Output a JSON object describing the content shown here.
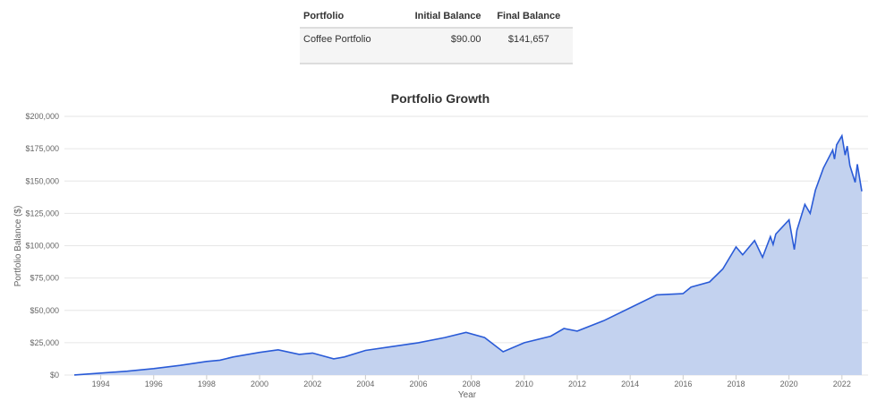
{
  "table": {
    "headers": [
      "Portfolio",
      "Initial Balance",
      "Final Balance"
    ],
    "rows": [
      {
        "portfolio": "Coffee Portfolio",
        "initial": "$90.00",
        "final": "$141,657"
      }
    ]
  },
  "chart_data": {
    "type": "area",
    "title": "Portfolio Growth",
    "xlabel": "Year",
    "ylabel": "Portfolio Balance ($)",
    "xlim": [
      1993,
      2022.75
    ],
    "ylim": [
      0,
      200000
    ],
    "grid": true,
    "color": "#2a5bd7",
    "fill": "#c3d2ef",
    "x_ticks": [
      "1994",
      "1996",
      "1998",
      "2000",
      "2002",
      "2004",
      "2006",
      "2008",
      "2010",
      "2012",
      "2014",
      "2016",
      "2018",
      "2020",
      "2022"
    ],
    "y_ticks": [
      "$0",
      "$25,000",
      "$50,000",
      "$75,000",
      "$100,000",
      "$125,000",
      "$150,000",
      "$175,000",
      "$200,000"
    ],
    "series": [
      {
        "points": [
          [
            1993,
            90
          ],
          [
            1994,
            1500
          ],
          [
            1995,
            3000
          ],
          [
            1996,
            5000
          ],
          [
            1997,
            7500
          ],
          [
            1998,
            10500
          ],
          [
            1998.5,
            11500
          ],
          [
            1999,
            14000
          ],
          [
            2000,
            17500
          ],
          [
            2000.7,
            19500
          ],
          [
            2001.5,
            16000
          ],
          [
            2002,
            17000
          ],
          [
            2002.8,
            12500
          ],
          [
            2003.2,
            14000
          ],
          [
            2004,
            19000
          ],
          [
            2005,
            22000
          ],
          [
            2006,
            25000
          ],
          [
            2007,
            29000
          ],
          [
            2007.8,
            33000
          ],
          [
            2008.5,
            29000
          ],
          [
            2009.2,
            18000
          ],
          [
            2010,
            25000
          ],
          [
            2011,
            30000
          ],
          [
            2011.5,
            36000
          ],
          [
            2012,
            34000
          ],
          [
            2013,
            42000
          ],
          [
            2014,
            52000
          ],
          [
            2015,
            62000
          ],
          [
            2016,
            63000
          ],
          [
            2016.3,
            68000
          ],
          [
            2017,
            72000
          ],
          [
            2017.5,
            82000
          ],
          [
            2018,
            99000
          ],
          [
            2018.25,
            93000
          ],
          [
            2018.7,
            104000
          ],
          [
            2019,
            91000
          ],
          [
            2019.3,
            107000
          ],
          [
            2019.4,
            101000
          ],
          [
            2019.5,
            109000
          ],
          [
            2020,
            120000
          ],
          [
            2020.2,
            97000
          ],
          [
            2020.3,
            112000
          ],
          [
            2020.6,
            132000
          ],
          [
            2020.8,
            125000
          ],
          [
            2021,
            143000
          ],
          [
            2021.3,
            160000
          ],
          [
            2021.65,
            174000
          ],
          [
            2021.72,
            167000
          ],
          [
            2021.8,
            178000
          ],
          [
            2022,
            185000
          ],
          [
            2022.12,
            170000
          ],
          [
            2022.2,
            177000
          ],
          [
            2022.3,
            162000
          ],
          [
            2022.5,
            149000
          ],
          [
            2022.58,
            163000
          ],
          [
            2022.75,
            142000
          ]
        ]
      }
    ]
  }
}
